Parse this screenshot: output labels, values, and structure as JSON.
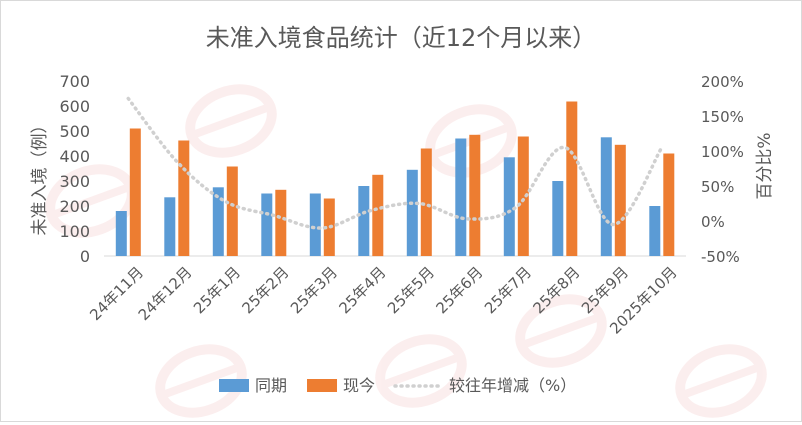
{
  "chart_data": {
    "type": "bar",
    "title": "未准入境食品统计（近12个月以来）",
    "ylabel": "未准入境（例）",
    "y2label": "百分比%",
    "ylim": [
      0,
      700
    ],
    "y2lim": [
      -50,
      200
    ],
    "yticks": [
      "0",
      "100",
      "200",
      "300",
      "400",
      "500",
      "600",
      "700"
    ],
    "y2ticks": [
      "-50%",
      "0%",
      "50%",
      "100%",
      "150%",
      "200%"
    ],
    "grid": false,
    "legend_position": "bottom",
    "categories": [
      "24年11月",
      "24年12月",
      "25年1月",
      "25年2月",
      "25年3月",
      "25年4月",
      "25年5月",
      "25年6月",
      "25年7月",
      "25年8月",
      "25年9月",
      "2025年10月"
    ],
    "series": [
      {
        "name": "同期",
        "type": "bar",
        "axis": "left",
        "color": "#5b9bd5",
        "values": [
          180,
          235,
          275,
          250,
          250,
          280,
          345,
          470,
          395,
          300,
          475,
          200
        ]
      },
      {
        "name": "现今",
        "type": "bar",
        "axis": "left",
        "color": "#ed7d31",
        "values": [
          510,
          462,
          358,
          265,
          230,
          325,
          430,
          485,
          478,
          618,
          445,
          410
        ]
      },
      {
        "name": "较往年增减（%）",
        "type": "line",
        "axis": "right",
        "color": "#d0d0d0",
        "style": "dotted",
        "values": [
          175,
          85,
          28,
          8,
          -10,
          15,
          25,
          3,
          20,
          105,
          -5,
          105
        ]
      }
    ]
  }
}
